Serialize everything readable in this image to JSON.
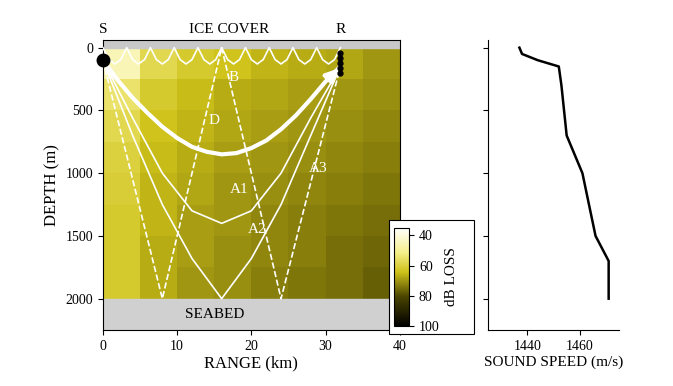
{
  "chart_data": [
    {
      "type": "heatmap",
      "xlabel": "RANGE (km)",
      "ylabel": "DEPTH (m)",
      "xlim": [
        0,
        40
      ],
      "ylim": [
        2250,
        -60
      ],
      "xticks": [
        0,
        10,
        20,
        30,
        40
      ],
      "yticks": [
        0,
        500,
        1000,
        1500,
        2000
      ],
      "range_edges": [
        0,
        5,
        10,
        15,
        20,
        25,
        30,
        35,
        40
      ],
      "depth_edges": [
        0,
        250,
        500,
        750,
        1000,
        1250,
        1500,
        1750,
        2000
      ],
      "cells": [
        [
          45,
          58,
          62,
          64,
          66,
          67,
          68,
          70
        ],
        [
          55,
          62,
          65,
          67,
          68,
          69,
          70,
          71
        ],
        [
          58,
          64,
          66,
          68,
          69,
          70,
          71,
          72
        ],
        [
          60,
          65,
          67,
          69,
          70,
          71,
          72,
          73
        ],
        [
          61,
          66,
          68,
          70,
          71,
          72,
          73,
          74
        ],
        [
          62,
          66,
          69,
          70,
          72,
          73,
          74,
          75
        ],
        [
          62,
          67,
          69,
          71,
          72,
          73,
          75,
          76
        ],
        [
          62,
          67,
          70,
          71,
          73,
          74,
          75,
          77
        ]
      ],
      "colorbar": {
        "label": "dB LOSS",
        "range": [
          35,
          100
        ],
        "ticks": [
          40,
          60,
          80,
          100
        ]
      },
      "annotations": {
        "source": {
          "label": "S",
          "x": 0,
          "y": 100
        },
        "receiver": {
          "label": "R",
          "x": 32,
          "y": [
            40,
            80,
            120,
            160,
            200
          ]
        },
        "surface": {
          "label": "ICE COVER"
        },
        "seabed": {
          "label": "SEABED",
          "depth": 2000
        }
      },
      "series": [
        {
          "name": "B",
          "color": "#ffffff",
          "line_style": "solid",
          "x": [
            0,
            0.8,
            1.6,
            2.4,
            3.2,
            4.0,
            4.8,
            5.6,
            6.4,
            7.2,
            8.0,
            8.8,
            9.6,
            10.4,
            11.2,
            12.0,
            12.8,
            13.6,
            14.4,
            15.2,
            16.0,
            16.8,
            17.6,
            18.4,
            19.2,
            20.0,
            20.8,
            21.6,
            22.4,
            23.2,
            24.0,
            24.8,
            25.6,
            26.4,
            27.2,
            28.0,
            28.8,
            29.6,
            30.4,
            31.2,
            32.0
          ],
          "values": [
            0,
            95,
            130,
            95,
            0,
            95,
            130,
            95,
            0,
            95,
            130,
            95,
            0,
            95,
            130,
            95,
            0,
            95,
            130,
            95,
            0,
            95,
            130,
            95,
            0,
            95,
            130,
            95,
            0,
            95,
            130,
            95,
            0,
            95,
            130,
            95,
            0,
            95,
            130,
            95,
            0
          ]
        },
        {
          "name": "D",
          "color": "#ffffff",
          "line_style": "solid",
          "x": [
            0,
            2,
            4,
            6,
            8,
            10,
            12,
            14,
            16,
            18,
            20,
            22,
            24,
            26,
            28,
            30,
            32
          ],
          "values": [
            100,
            260,
            400,
            520,
            630,
            720,
            790,
            830,
            850,
            840,
            800,
            740,
            650,
            540,
            410,
            270,
            150
          ]
        },
        {
          "name": "A1",
          "color": "#ffffff",
          "line_style": "solid",
          "x": [
            0,
            4,
            8,
            12,
            16,
            20,
            24,
            28,
            32
          ],
          "values": [
            100,
            560,
            1000,
            1300,
            1400,
            1300,
            1000,
            560,
            150
          ]
        },
        {
          "name": "A2",
          "color": "#ffffff",
          "line_style": "solid",
          "x": [
            0,
            4,
            8,
            12,
            16,
            20,
            24,
            28,
            32
          ],
          "values": [
            100,
            700,
            1250,
            1680,
            2000,
            1680,
            1250,
            700,
            150
          ]
        },
        {
          "name": "A3",
          "color": "#ffffff",
          "line_style": "dashed",
          "x": [
            0,
            8,
            16,
            24,
            32
          ],
          "values": [
            100,
            2000,
            0,
            2000,
            150
          ]
        }
      ]
    },
    {
      "type": "line",
      "xlabel": "SOUND SPEED (m/s)",
      "xlim": [
        1425,
        1475
      ],
      "ylim": [
        2250,
        -60
      ],
      "xticks": [
        1440,
        1460
      ],
      "yticks": [
        0,
        500,
        1000,
        1500,
        2000
      ],
      "tick_labels": "x",
      "series": [
        {
          "color": "#000000",
          "line_style": "solid",
          "x": [
            1437,
            1438,
            1444,
            1452,
            1453,
            1454,
            1455,
            1461,
            1466,
            1471,
            1471
          ],
          "values": [
            0,
            50,
            100,
            150,
            300,
            500,
            700,
            1000,
            1500,
            1700,
            2000
          ]
        }
      ]
    }
  ]
}
